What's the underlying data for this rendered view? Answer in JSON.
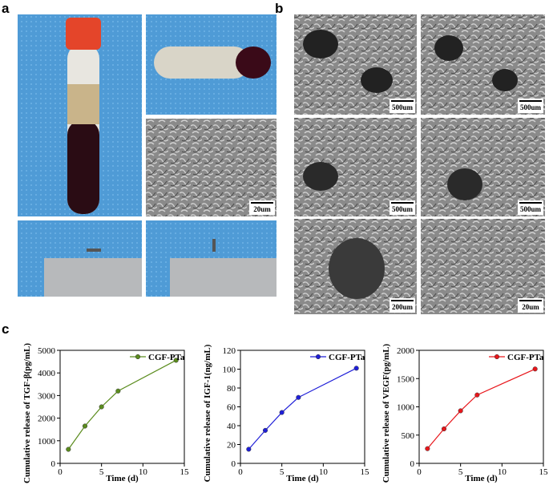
{
  "panel_labels": [
    "a",
    "b",
    "c"
  ],
  "scale_bars": [
    "20um",
    "500um",
    "500um",
    "500um",
    "500um",
    "200um",
    "20um"
  ],
  "chart_data": [
    {
      "type": "line",
      "x_label": "Time (d)",
      "y_label": "Cumulative release of TGF-β(pg/mL)",
      "x": [
        1,
        3,
        5,
        7,
        14
      ],
      "series": [
        {
          "name": "CGF-PTa",
          "color": "#5b8c1e",
          "values": [
            620,
            1650,
            2500,
            3200,
            4560
          ]
        }
      ],
      "xlim": [
        0,
        15
      ],
      "xticks": [
        0,
        5,
        10,
        15
      ],
      "ylim": [
        0,
        5000
      ],
      "yticks": [
        0,
        1000,
        2000,
        3000,
        4000,
        5000
      ],
      "legend": "upper right"
    },
    {
      "type": "line",
      "x_label": "Time (d)",
      "y_label": "Cumulative release of IGF-1(ng/mL)",
      "x": [
        1,
        3,
        5,
        7,
        14
      ],
      "series": [
        {
          "name": "CGF-PTa",
          "color": "#1f1fd8",
          "values": [
            15,
            35,
            54,
            70,
            101
          ]
        }
      ],
      "xlim": [
        0,
        15
      ],
      "xticks": [
        0,
        5,
        10,
        15
      ],
      "ylim": [
        0,
        120
      ],
      "yticks": [
        0,
        20,
        40,
        60,
        80,
        100,
        120
      ],
      "legend": "upper right"
    },
    {
      "type": "line",
      "x_label": "Time (d)",
      "y_label": "Cumulative release of VEGF(pg/mL)",
      "x": [
        1,
        3,
        5,
        7,
        14
      ],
      "series": [
        {
          "name": "CGF-PTa",
          "color": "#e8161b",
          "values": [
            260,
            610,
            930,
            1210,
            1670
          ]
        }
      ],
      "xlim": [
        0,
        15
      ],
      "xticks": [
        0,
        5,
        10,
        15
      ],
      "ylim": [
        0,
        2000
      ],
      "yticks": [
        0,
        500,
        1000,
        1500,
        2000
      ],
      "legend": "upper right"
    }
  ]
}
